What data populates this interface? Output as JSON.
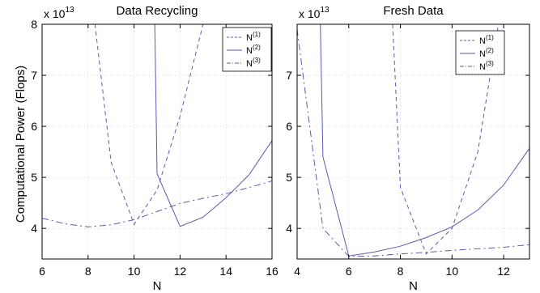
{
  "chart_data": [
    {
      "type": "line",
      "title": "Data Recycling",
      "xlabel": "N",
      "ylabel": "Computational Power (Flops)",
      "y_multiplier": "x 10",
      "y_exponent": "13",
      "xlim": [
        6,
        16
      ],
      "ylim": [
        3.4,
        8
      ],
      "xticks": [
        6,
        8,
        10,
        12,
        14,
        16
      ],
      "yticks": [
        4,
        5,
        6,
        7,
        8
      ],
      "grid": true,
      "legend_position": "top-right",
      "series": [
        {
          "name": "N",
          "sup": "(1)",
          "style": "dashed",
          "color": "#5a5ab4",
          "x": [
            8.3,
            9,
            10,
            11,
            12,
            13,
            14.3
          ],
          "y": [
            8.0,
            5.3,
            4.08,
            4.75,
            6.2,
            8.0,
            8.0
          ]
        },
        {
          "name": "N",
          "sup": "(2)",
          "style": "solid",
          "color": "#5a5ab4",
          "x": [
            10.9,
            11,
            12,
            13,
            14,
            15,
            16
          ],
          "y": [
            8.0,
            5.07,
            4.04,
            4.22,
            4.6,
            5.05,
            5.72
          ]
        },
        {
          "name": "N",
          "sup": "(3)",
          "style": "dashdot",
          "color": "#5a5ab4",
          "x": [
            6,
            7,
            8,
            9,
            10,
            11,
            12,
            13,
            14,
            15,
            16
          ],
          "y": [
            4.2,
            4.09,
            4.03,
            4.07,
            4.17,
            4.33,
            4.49,
            4.59,
            4.68,
            4.8,
            4.93
          ]
        }
      ]
    },
    {
      "type": "line",
      "title": "Fresh Data",
      "xlabel": "N",
      "ylabel": "",
      "y_multiplier": "x 10",
      "y_exponent": "13",
      "xlim": [
        4,
        13
      ],
      "ylim": [
        3.4,
        8
      ],
      "xticks": [
        4,
        6,
        8,
        10,
        12
      ],
      "yticks": [
        4,
        5,
        6,
        7
      ],
      "grid": true,
      "legend_position": "top-right",
      "series": [
        {
          "name": "N",
          "sup": "(1)",
          "style": "dashed",
          "color": "#5a5ab4",
          "x": [
            7.7,
            8,
            9,
            10,
            11,
            11.8
          ],
          "y": [
            8.0,
            4.8,
            3.5,
            4.0,
            5.5,
            8.0
          ]
        },
        {
          "name": "N",
          "sup": "(2)",
          "style": "solid",
          "color": "#5a5ab4",
          "x": [
            4.9,
            5,
            6,
            7,
            8,
            9,
            10,
            11,
            12,
            13
          ],
          "y": [
            8.0,
            5.4,
            3.46,
            3.54,
            3.65,
            3.82,
            4.03,
            4.36,
            4.85,
            5.57
          ]
        },
        {
          "name": "N",
          "sup": "(3)",
          "style": "dashdot",
          "color": "#5a5ab4",
          "x": [
            4,
            5,
            6,
            7,
            8,
            9,
            10,
            11,
            12,
            13
          ],
          "y": [
            7.9,
            4.0,
            3.45,
            3.46,
            3.5,
            3.53,
            3.57,
            3.6,
            3.63,
            3.68
          ]
        }
      ]
    }
  ]
}
